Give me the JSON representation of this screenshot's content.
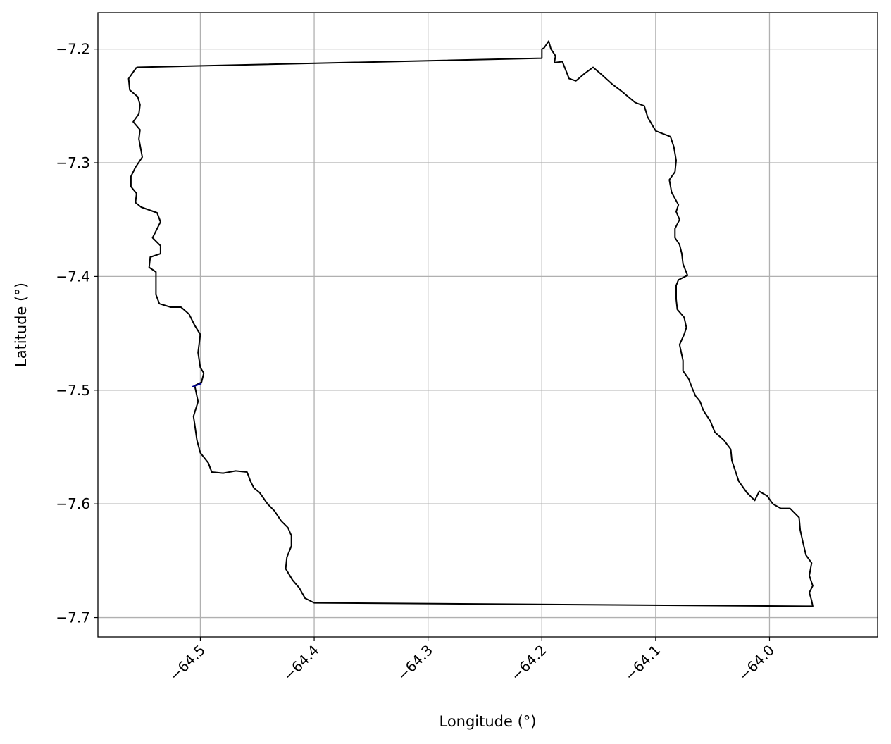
{
  "chart_data": {
    "type": "map-outline",
    "title": "",
    "xlabel": "Longitude (°)",
    "ylabel": "Latitude (°)",
    "xlim": [
      -64.59,
      -63.905
    ],
    "ylim": [
      -7.717,
      -7.168
    ],
    "grid": true,
    "x_ticks": [
      -64.5,
      -64.4,
      -64.3,
      -64.2,
      -64.1,
      -64.0
    ],
    "x_tick_labels": [
      "−64.5",
      "−64.4",
      "−64.3",
      "−64.2",
      "−64.1",
      "−64.0"
    ],
    "y_ticks": [
      -7.2,
      -7.3,
      -7.4,
      -7.5,
      -7.6,
      -7.7
    ],
    "y_tick_labels": [
      "−7.2",
      "−7.3",
      "−7.4",
      "−7.5",
      "−7.6",
      "−7.7"
    ],
    "colors": {
      "outline": "#000000",
      "grid": "#b0b0b0",
      "frame": "#000000",
      "highlight": "#00008b"
    },
    "boundary": [
      [
        -64.556,
        -7.216
      ],
      [
        -64.563,
        -7.226
      ],
      [
        -64.562,
        -7.236
      ],
      [
        -64.555,
        -7.242
      ],
      [
        -64.553,
        -7.249
      ],
      [
        -64.554,
        -7.257
      ],
      [
        -64.559,
        -7.264
      ],
      [
        -64.553,
        -7.271
      ],
      [
        -64.554,
        -7.279
      ],
      [
        -64.551,
        -7.295
      ],
      [
        -64.557,
        -7.304
      ],
      [
        -64.561,
        -7.312
      ],
      [
        -64.561,
        -7.321
      ],
      [
        -64.556,
        -7.327
      ],
      [
        -64.557,
        -7.335
      ],
      [
        -64.552,
        -7.339
      ],
      [
        -64.538,
        -7.344
      ],
      [
        -64.535,
        -7.352
      ],
      [
        -64.539,
        -7.36
      ],
      [
        -64.542,
        -7.366
      ],
      [
        -64.535,
        -7.373
      ],
      [
        -64.535,
        -7.38
      ],
      [
        -64.544,
        -7.383
      ],
      [
        -64.545,
        -7.392
      ],
      [
        -64.539,
        -7.396
      ],
      [
        -64.539,
        -7.416
      ],
      [
        -64.536,
        -7.424
      ],
      [
        -64.526,
        -7.427
      ],
      [
        -64.517,
        -7.427
      ],
      [
        -64.51,
        -7.433
      ],
      [
        -64.505,
        -7.443
      ],
      [
        -64.5,
        -7.451
      ],
      [
        -64.502,
        -7.467
      ],
      [
        -64.5,
        -7.48
      ],
      [
        -64.497,
        -7.485
      ],
      [
        -64.499,
        -7.493
      ],
      [
        -64.505,
        -7.496
      ],
      [
        -64.502,
        -7.51
      ],
      [
        -64.506,
        -7.523
      ],
      [
        -64.505,
        -7.53
      ],
      [
        -64.503,
        -7.544
      ],
      [
        -64.5,
        -7.555
      ],
      [
        -64.493,
        -7.564
      ],
      [
        -64.49,
        -7.572
      ],
      [
        -64.48,
        -7.573
      ],
      [
        -64.469,
        -7.571
      ],
      [
        -64.459,
        -7.572
      ],
      [
        -64.456,
        -7.58
      ],
      [
        -64.453,
        -7.586
      ],
      [
        -64.448,
        -7.59
      ],
      [
        -64.441,
        -7.6
      ],
      [
        -64.435,
        -7.606
      ],
      [
        -64.429,
        -7.615
      ],
      [
        -64.423,
        -7.621
      ],
      [
        -64.42,
        -7.628
      ],
      [
        -64.42,
        -7.637
      ],
      [
        -64.424,
        -7.647
      ],
      [
        -64.425,
        -7.657
      ],
      [
        -64.419,
        -7.667
      ],
      [
        -64.413,
        -7.674
      ],
      [
        -64.408,
        -7.683
      ],
      [
        -64.4,
        -7.687
      ],
      [
        -63.962,
        -7.69
      ],
      [
        -63.963,
        -7.685
      ],
      [
        -63.965,
        -7.678
      ],
      [
        -63.962,
        -7.672
      ],
      [
        -63.965,
        -7.663
      ],
      [
        -63.963,
        -7.652
      ],
      [
        -63.968,
        -7.645
      ],
      [
        -63.971,
        -7.632
      ],
      [
        -63.973,
        -7.623
      ],
      [
        -63.974,
        -7.612
      ],
      [
        -63.982,
        -7.604
      ],
      [
        -63.99,
        -7.604
      ],
      [
        -63.997,
        -7.6
      ],
      [
        -64.002,
        -7.593
      ],
      [
        -64.009,
        -7.589
      ],
      [
        -64.013,
        -7.597
      ],
      [
        -64.02,
        -7.59
      ],
      [
        -64.027,
        -7.58
      ],
      [
        -64.03,
        -7.571
      ],
      [
        -64.033,
        -7.562
      ],
      [
        -64.034,
        -7.552
      ],
      [
        -64.04,
        -7.544
      ],
      [
        -64.048,
        -7.537
      ],
      [
        -64.052,
        -7.527
      ],
      [
        -64.058,
        -7.518
      ],
      [
        -64.061,
        -7.51
      ],
      [
        -64.065,
        -7.505
      ],
      [
        -64.068,
        -7.498
      ],
      [
        -64.071,
        -7.49
      ],
      [
        -64.076,
        -7.483
      ],
      [
        -64.076,
        -7.474
      ],
      [
        -64.079,
        -7.46
      ],
      [
        -64.075,
        -7.451
      ],
      [
        -64.073,
        -7.445
      ],
      [
        -64.075,
        -7.436
      ],
      [
        -64.081,
        -7.429
      ],
      [
        -64.082,
        -7.42
      ],
      [
        -64.082,
        -7.408
      ],
      [
        -64.08,
        -7.403
      ],
      [
        -64.072,
        -7.399
      ],
      [
        -64.076,
        -7.389
      ],
      [
        -64.077,
        -7.38
      ],
      [
        -64.079,
        -7.372
      ],
      [
        -64.083,
        -7.366
      ],
      [
        -64.083,
        -7.358
      ],
      [
        -64.079,
        -7.35
      ],
      [
        -64.082,
        -7.343
      ],
      [
        -64.08,
        -7.337
      ],
      [
        -64.086,
        -7.326
      ],
      [
        -64.088,
        -7.315
      ],
      [
        -64.083,
        -7.308
      ],
      [
        -64.082,
        -7.298
      ],
      [
        -64.084,
        -7.286
      ],
      [
        -64.087,
        -7.277
      ],
      [
        -64.1,
        -7.272
      ],
      [
        -64.107,
        -7.26
      ],
      [
        -64.11,
        -7.25
      ],
      [
        -64.118,
        -7.247
      ],
      [
        -64.13,
        -7.237
      ],
      [
        -64.138,
        -7.231
      ],
      [
        -64.148,
        -7.222
      ],
      [
        -64.155,
        -7.216
      ],
      [
        -64.163,
        -7.222
      ],
      [
        -64.17,
        -7.228
      ],
      [
        -64.176,
        -7.226
      ],
      [
        -64.182,
        -7.211
      ],
      [
        -64.189,
        -7.212
      ],
      [
        -64.188,
        -7.206
      ],
      [
        -64.192,
        -7.2
      ],
      [
        -64.194,
        -7.193
      ],
      [
        -64.198,
        -7.199
      ],
      [
        -64.2,
        -7.2
      ],
      [
        -64.2,
        -7.208
      ],
      [
        -64.556,
        -7.216
      ]
    ],
    "highlight_segment": [
      [
        -64.507,
        -7.497
      ],
      [
        -64.499,
        -7.494
      ]
    ]
  }
}
